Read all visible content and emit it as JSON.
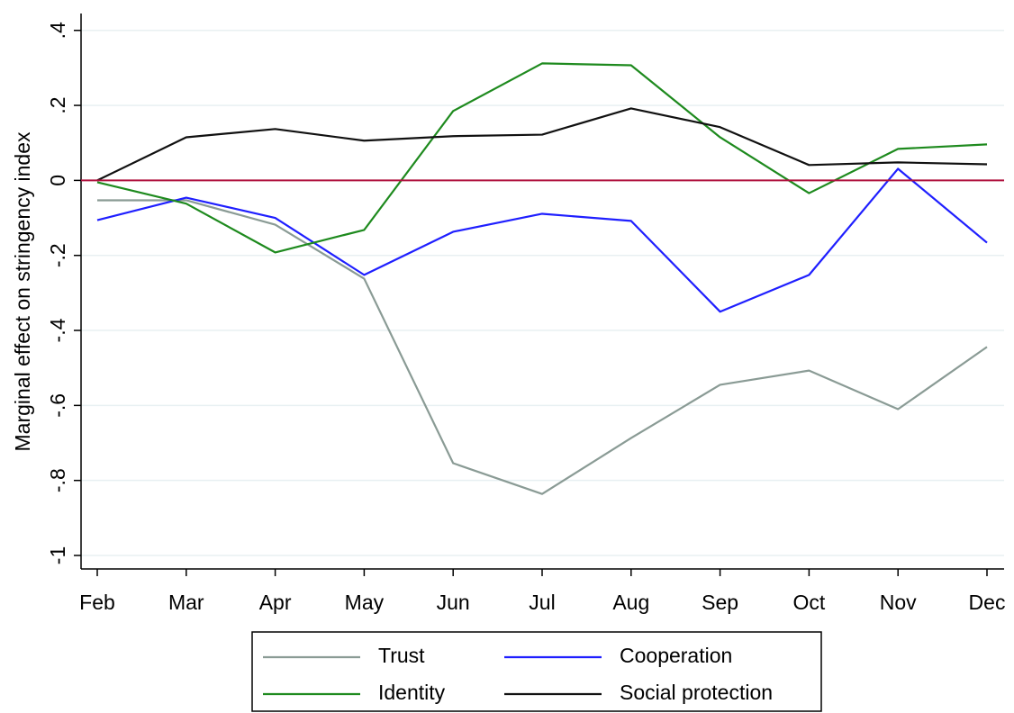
{
  "chart_data": {
    "type": "line",
    "y_label": "Marginal effect on stringency index",
    "categories": [
      "Feb",
      "Mar",
      "Apr",
      "May",
      "Jun",
      "Jul",
      "Aug",
      "Sep",
      "Oct",
      "Nov",
      "Dec"
    ],
    "series": [
      {
        "name": "Trust",
        "color": "#8a9b95",
        "values": [
          -0.053,
          -0.053,
          -0.118,
          -0.262,
          -0.754,
          -0.836,
          -0.687,
          -0.545,
          -0.507,
          -0.61,
          -0.444
        ]
      },
      {
        "name": "Cooperation",
        "color": "#1f1fff",
        "values": [
          -0.106,
          -0.046,
          -0.1,
          -0.252,
          -0.137,
          -0.089,
          -0.108,
          -0.35,
          -0.252,
          0.031,
          -0.166
        ]
      },
      {
        "name": "Identity",
        "color": "#1e8a1e",
        "values": [
          -0.005,
          -0.062,
          -0.192,
          -0.132,
          0.185,
          0.312,
          0.307,
          0.115,
          -0.034,
          0.084,
          0.096
        ]
      },
      {
        "name": "Social protection",
        "color": "#111111",
        "values": [
          0,
          0.115,
          0.137,
          0.106,
          0.118,
          0.122,
          0.192,
          0.142,
          0.041,
          0.048,
          0.043
        ]
      }
    ],
    "ylim": [
      -1.036,
      0.445
    ],
    "yticks": [
      {
        "value": 0.4,
        "label": ".4"
      },
      {
        "value": 0.2,
        "label": ".2"
      },
      0,
      {
        "value": -0.2,
        "label": "-.2"
      },
      {
        "value": -0.4,
        "label": "-.4"
      },
      {
        "value": -0.6,
        "label": "-.6"
      },
      {
        "value": -0.8,
        "label": "-.8"
      },
      {
        "value": -1,
        "label": "-1"
      }
    ],
    "grid": true,
    "yline": 0,
    "yline_color": "#b0123f",
    "legend": "bottom"
  }
}
